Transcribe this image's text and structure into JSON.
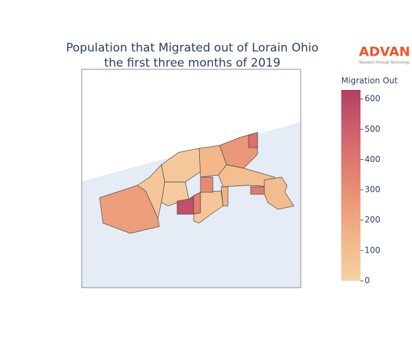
{
  "chart_data": {
    "type": "choropleth",
    "title_lines": [
      "Population that Migrated out of Lorain Ohio",
      "the first three months of 2019"
    ],
    "logo": {
      "name": "ADVAN",
      "tagline": "Research through Technology"
    },
    "colorbar_title": "Migration Out",
    "values": [
      230,
      60,
      40,
      560,
      360,
      60,
      50,
      320,
      130,
      260,
      100,
      380,
      110,
      420,
      150
    ],
    "zlim": [
      0,
      630
    ],
    "zticks": [
      0,
      100,
      200,
      300,
      400,
      500,
      600
    ],
    "colorscale": [
      "#f6d3a7",
      "#f3b88a",
      "#ec9a79",
      "#e17c6f",
      "#cd5e6c",
      "#b13f63"
    ],
    "land_color": "#e5ecf6"
  }
}
